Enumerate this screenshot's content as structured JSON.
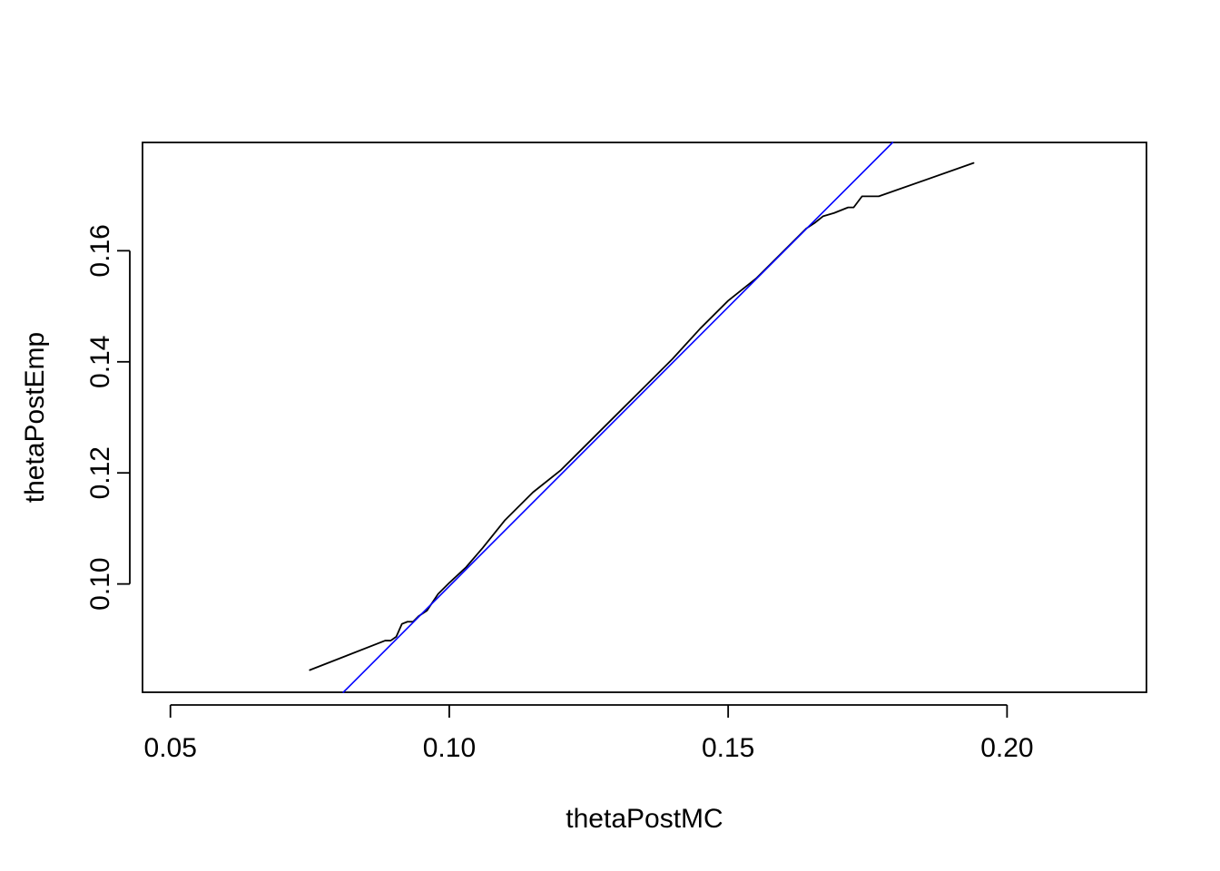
{
  "chart_data": {
    "type": "line",
    "title": "",
    "xlabel": "thetaPostMC",
    "ylabel": "thetaPostEmp",
    "xlim": [
      0.045,
      0.225
    ],
    "ylim": [
      0.0805,
      0.1795
    ],
    "x_ticks": [
      0.05,
      0.1,
      0.15,
      0.2
    ],
    "x_tick_labels": [
      "0.05",
      "0.10",
      "0.15",
      "0.20"
    ],
    "y_ticks": [
      0.1,
      0.12,
      0.14,
      0.16
    ],
    "y_tick_labels": [
      "0.10",
      "0.12",
      "0.14",
      "0.16"
    ],
    "grid": false,
    "series": [
      {
        "color": "#000000",
        "x": [
          0.075,
          0.0885,
          0.0895,
          0.0905,
          0.0915,
          0.0925,
          0.0935,
          0.0945,
          0.096,
          0.098,
          0.1,
          0.103,
          0.106,
          0.11,
          0.115,
          0.12,
          0.125,
          0.13,
          0.135,
          0.14,
          0.145,
          0.15,
          0.155,
          0.158,
          0.16,
          0.162,
          0.164,
          0.1655,
          0.167,
          0.169,
          0.1715,
          0.1725,
          0.174,
          0.177,
          0.194
        ],
        "y": [
          0.0845,
          0.0898,
          0.0898,
          0.0905,
          0.0928,
          0.0932,
          0.0932,
          0.0942,
          0.0952,
          0.0982,
          0.1002,
          0.103,
          0.1065,
          0.1115,
          0.1165,
          0.1205,
          0.1255,
          0.1305,
          0.1355,
          0.1405,
          0.146,
          0.151,
          0.155,
          0.158,
          0.16,
          0.162,
          0.164,
          0.165,
          0.1662,
          0.1668,
          0.1678,
          0.1678,
          0.1698,
          0.1698,
          0.1758
        ]
      },
      {
        "color": "#0000ff",
        "type": "reference-line",
        "x": [
          0.081,
          0.1795
        ],
        "y": [
          0.0805,
          0.1795
        ]
      }
    ]
  }
}
